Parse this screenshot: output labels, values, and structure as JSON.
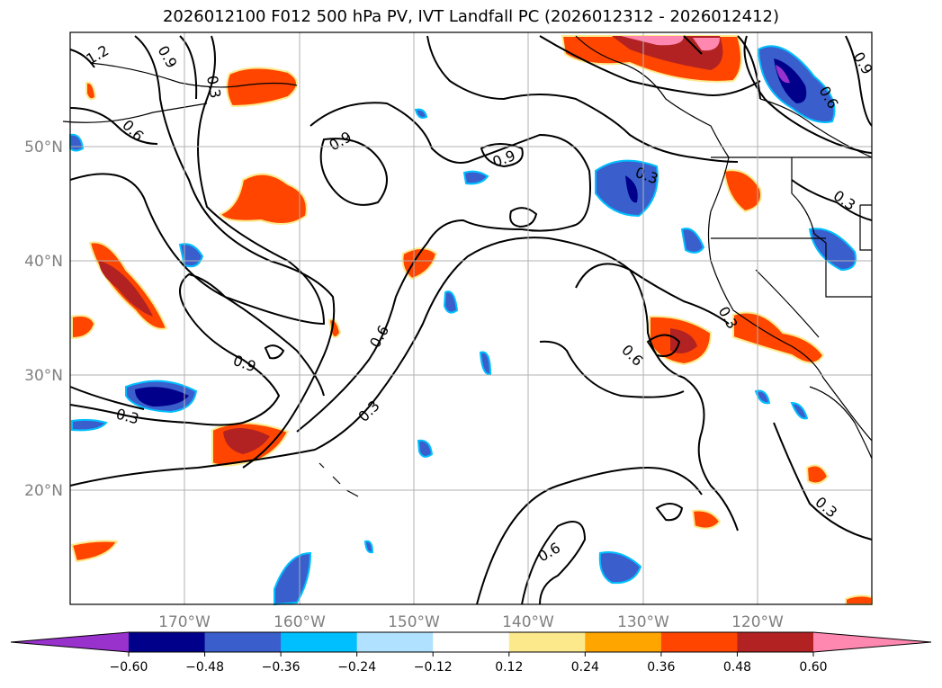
{
  "title": "2026012100 F012 500 hPa PV, IVT Landfall PC (2026012312 - 2026012412)",
  "lat_labels": [
    "50°N",
    "40°N",
    "30°N",
    "20°N"
  ],
  "lon_labels": [
    "170°W",
    "160°W",
    "150°W",
    "140°W",
    "130°W",
    "120°W"
  ],
  "colorbar": {
    "labels": [
      "−0.60",
      "−0.48",
      "−0.36",
      "−0.24",
      "−0.12",
      "0.12",
      "0.24",
      "0.36",
      "0.48",
      "0.60"
    ],
    "colors": [
      "#9932cc",
      "#00008b",
      "#3a5fcd",
      "#00bfff",
      "#b0e2ff",
      "#ffffff",
      "#fce98c",
      "#ffa500",
      "#ff4500",
      "#b22222",
      "#ff88b0"
    ]
  },
  "contour_labels": [
    "1.2",
    "0.9",
    "0.6",
    "0.3"
  ],
  "colors": {
    "grid": "#b0b0b0",
    "tick_text": "#808080",
    "contour": "#000000"
  }
}
